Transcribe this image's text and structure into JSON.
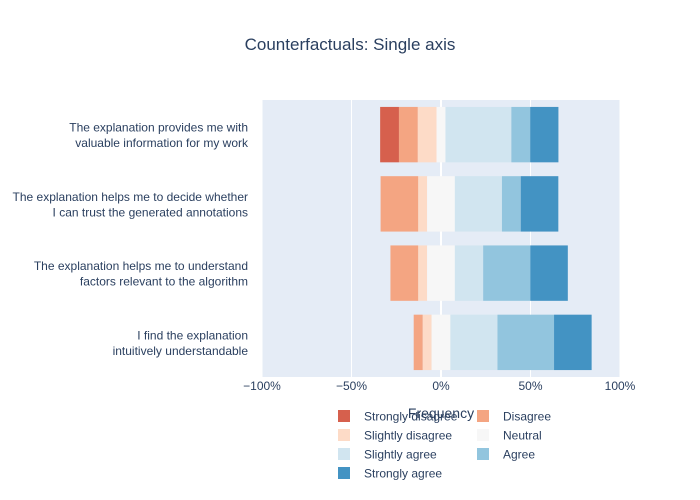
{
  "chart_data": {
    "type": "bar",
    "orientation": "horizontal",
    "barmode": "diverging-stacked",
    "title": "Counterfactuals: Single axis",
    "xlabel": "Frequency",
    "ylabel": "",
    "xlim": [
      -100,
      100
    ],
    "x_ticks": [
      -100,
      -50,
      0,
      50,
      100
    ],
    "x_tick_labels": [
      "−100%",
      "−50%",
      "0%",
      "50%",
      "100%"
    ],
    "grid": true,
    "legend_position": "bottom",
    "categories": [
      [
        "I find the explanation",
        "intuitively understandable"
      ],
      [
        "The explanation helps me to understand",
        "factors relevant to the algorithm"
      ],
      [
        "The explanation helps me to decide whether",
        "I can trust the generated annotations"
      ],
      [
        "The explanation provides me with",
        "valuable information for my work"
      ]
    ],
    "series": [
      {
        "name": "Strongly disagree",
        "color": "#d6604d",
        "values": [
          0,
          0,
          0,
          10.5
        ]
      },
      {
        "name": "Disagree",
        "color": "#f4a582",
        "values": [
          5,
          15.5,
          21,
          10.5
        ]
      },
      {
        "name": "Slightly disagree",
        "color": "#fddbc7",
        "values": [
          5,
          5,
          5,
          10.5
        ]
      },
      {
        "name": "Neutral",
        "color": "#f7f7f7",
        "values": [
          10.5,
          15.5,
          15.5,
          5
        ]
      },
      {
        "name": "Slightly agree",
        "color": "#d1e5f0",
        "values": [
          26.3,
          15.8,
          26.3,
          36.8
        ]
      },
      {
        "name": "Agree",
        "color": "#92c5de",
        "values": [
          31.6,
          26.3,
          10.5,
          10.5
        ]
      },
      {
        "name": "Strongly agree",
        "color": "#4393c3",
        "values": [
          21,
          21,
          21,
          15.8
        ]
      }
    ],
    "negative_series": [
      "Strongly disagree",
      "Disagree",
      "Slightly disagree"
    ],
    "neutral_series": "Neutral"
  },
  "legend_rows": [
    [
      "Strongly disagree",
      "Disagree"
    ],
    [
      "Slightly disagree",
      "Neutral"
    ],
    [
      "Slightly agree",
      "Agree"
    ],
    [
      "Strongly agree"
    ]
  ],
  "colors": {
    "plot_bg": "#e5ecf6",
    "grid": "#ffffff",
    "text": "#2a3f5f"
  }
}
